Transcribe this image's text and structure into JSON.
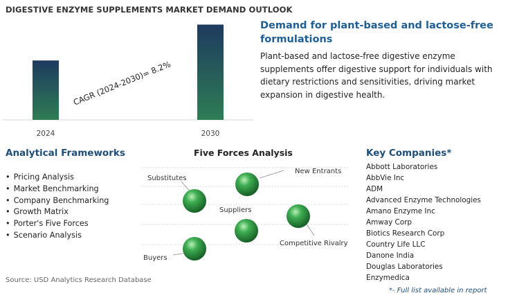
{
  "title": "DIGESTIVE ENZYME SUPPLEMENTS MARKET DEMAND OUTLOOK",
  "chart_data": {
    "type": "bar",
    "categories": [
      "2024",
      "2030"
    ],
    "values": [
      1.0,
      1.604
    ],
    "annotation": "CAGR (2024-2030)=  8.2%",
    "ylim": [
      0,
      1.75
    ],
    "bar_color_top": "#1e3a5f",
    "bar_color_bottom": "#2e7d55"
  },
  "demand": {
    "heading": "Demand for plant-based and lactose-free formulations",
    "body": "Plant-based and lactose-free digestive enzyme supplements offer digestive support for individuals with dietary restrictions and sensitivities, driving market expansion in digestive health."
  },
  "frameworks": {
    "title": "Analytical Frameworks",
    "items": [
      "Pricing Analysis",
      "Market Benchmarking",
      "Company Benchmarking",
      "Growth Matrix",
      "Porter's Five Forces",
      "Scenario Analysis"
    ]
  },
  "forces": {
    "title": "Five Forces Analysis",
    "labels": {
      "substitutes": "Substitutes",
      "new_entrants": "New Entrants",
      "suppliers": "Suppliers",
      "competitive_rivalry": "Competitive Rivalry",
      "buyers": "Buyers"
    },
    "sphere_color": "#2e9e4a"
  },
  "companies": {
    "title": "Key Companies*",
    "items": [
      "Abbott Laboratories",
      "AbbVie Inc",
      "ADM",
      "Advanced Enzyme Technologies",
      "Amano Enzyme Inc",
      "Amway Corp",
      "Biotics Research Corp",
      "Country Life LLC",
      "Danone India",
      "Douglas Laboratories",
      "Enzymedica"
    ],
    "footnote": "*- Full list available in report"
  },
  "source": "Source: USD Analytics Research Database"
}
